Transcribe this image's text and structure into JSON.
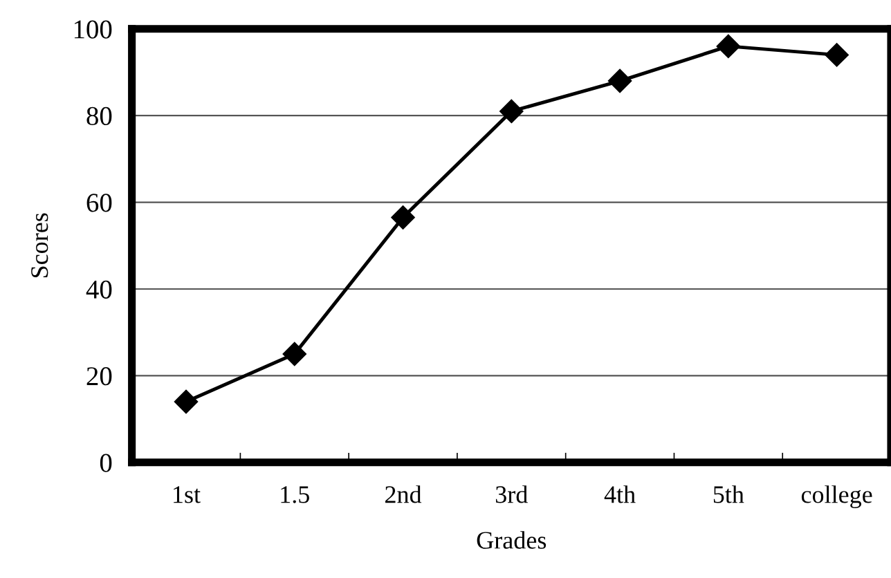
{
  "chart_data": {
    "type": "line",
    "xlabel": "Grades",
    "ylabel": "Scores",
    "categories": [
      "1st",
      "1.5",
      "2nd",
      "3rd",
      "4th",
      "5th",
      "college"
    ],
    "series": [
      {
        "color": "#000000",
        "values": [
          14,
          25,
          56.5,
          81,
          88,
          96,
          94
        ]
      }
    ],
    "ylim": [
      0,
      100
    ],
    "yticks": [
      0,
      20,
      40,
      60,
      80,
      100
    ],
    "grid": "y",
    "marker": "diamond",
    "line_style": "solid",
    "legend": false
  }
}
